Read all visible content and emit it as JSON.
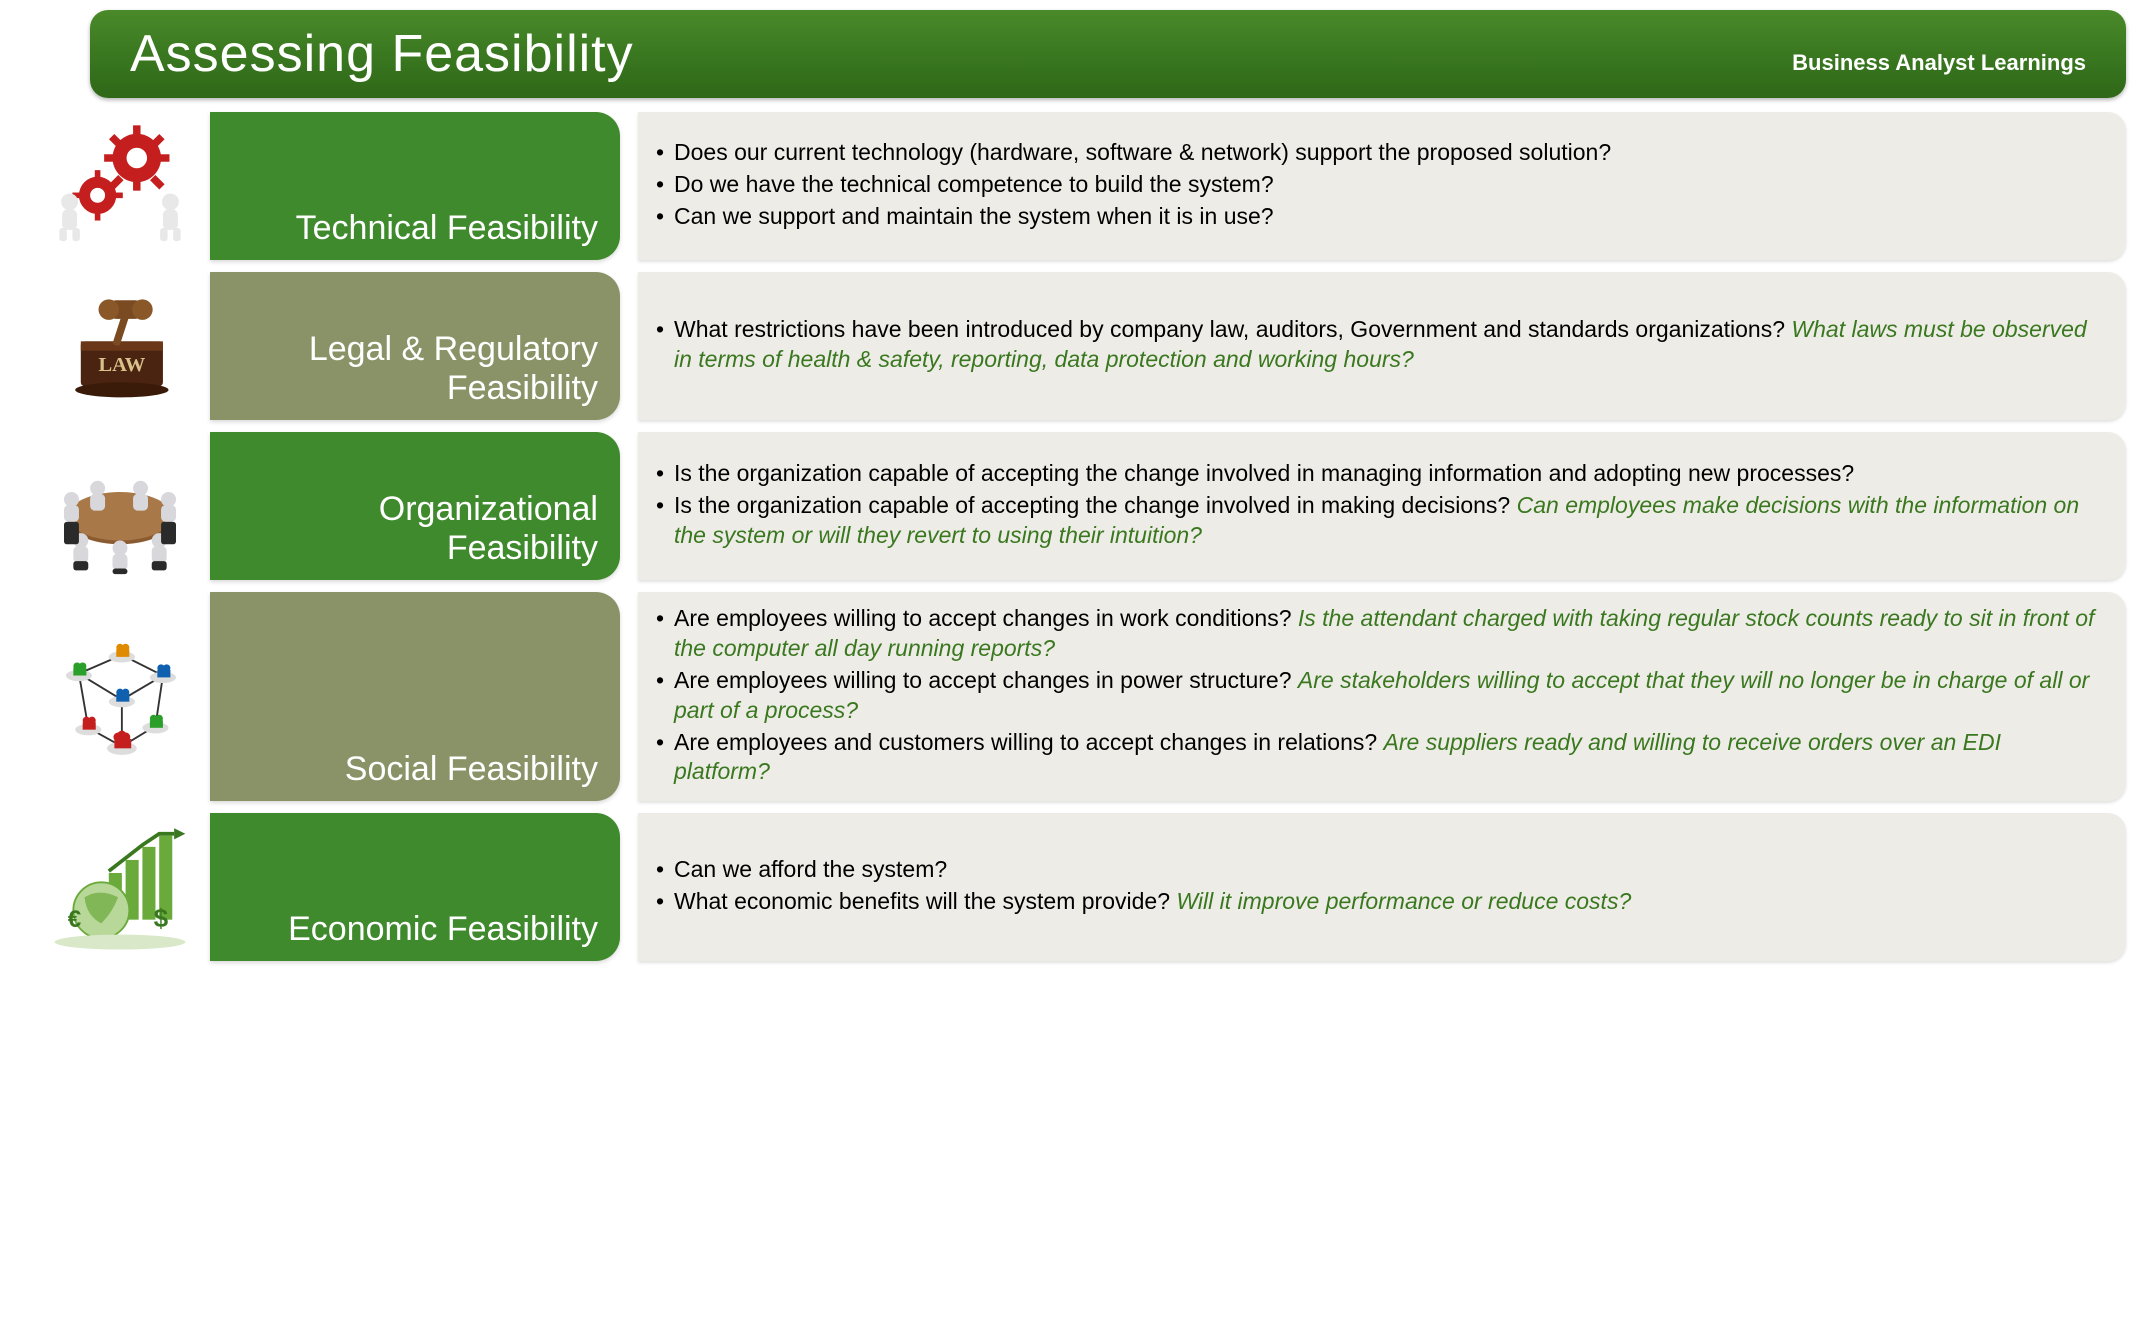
{
  "header": {
    "title": "Assessing Feasibility",
    "subtitle": "Business Analyst Learnings"
  },
  "colors": {
    "header_bg_top": "#4a8a2a",
    "header_bg_bottom": "#2f6818",
    "row_green": "#3f8a2d",
    "row_olive": "#8a9368",
    "content_bg": "#eeece6",
    "emphasis_text": "#3a7820",
    "body_text": "#000000",
    "white": "#ffffff"
  },
  "rows": [
    {
      "icon": "gears",
      "label": "Technical Feasibility",
      "label_bg": "#3f8a2d",
      "bullets": [
        {
          "text": "Does our current technology (hardware, software & network) support the proposed solution?"
        },
        {
          "text": "Do we have the technical competence to build the system?"
        },
        {
          "text": "Can we support and maintain the system when it is in use?"
        }
      ]
    },
    {
      "icon": "law",
      "label": "Legal & Regulatory Feasibility",
      "label_bg": "#8a9368",
      "bullets": [
        {
          "text": "What restrictions have been introduced by company law, auditors, Government and standards organizations?",
          "emph": "What laws must be observed in terms of health & safety, reporting, data protection and working hours?"
        }
      ]
    },
    {
      "icon": "meeting",
      "label": "Organizational Feasibility",
      "label_bg": "#3f8a2d",
      "bullets": [
        {
          "text": "Is the organization capable of accepting the change involved in managing information and adopting new processes?"
        },
        {
          "text": "Is the organization capable of accepting the change involved in making decisions?",
          "emph": "Can employees make decisions with the information on the system or will they revert to using their intuition?"
        }
      ]
    },
    {
      "icon": "network",
      "label": "Social Feasibility",
      "label_bg": "#8a9368",
      "bullets": [
        {
          "text": "Are employees willing to accept changes in work conditions?",
          "emph": "Is the attendant charged with taking regular stock counts ready to sit in front of the computer all day running reports?"
        },
        {
          "text": "Are employees willing to accept changes in power structure?",
          "emph": "Are stakeholders willing to accept that they will no longer be in charge of all or part of a process?"
        },
        {
          "text": "Are employees and customers willing to accept changes in relations?",
          "emph": "Are suppliers ready and willing to receive orders over an EDI platform?"
        }
      ]
    },
    {
      "icon": "economy",
      "label": "Economic Feasibility",
      "label_bg": "#3f8a2d",
      "bullets": [
        {
          "text": "Can we afford the system?"
        },
        {
          "text": "What economic benefits will the system provide?",
          "emph": "Will it improve performance or reduce costs?"
        }
      ]
    }
  ]
}
